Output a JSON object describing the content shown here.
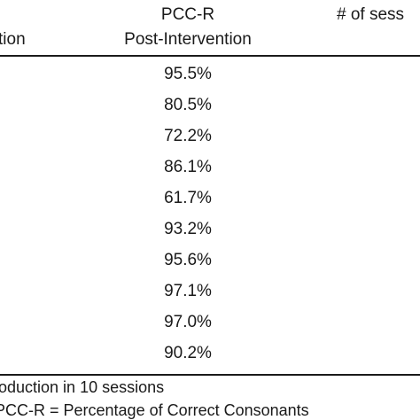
{
  "header": {
    "partial_left": "tion",
    "pcc_title": "PCC-R",
    "pcc_subtitle": "Post-Intervention",
    "sessions_partial": "# of sess"
  },
  "rows": [
    "95.5%",
    "80.5%",
    "72.2%",
    "86.1%",
    "61.7%",
    "93.2%",
    "95.6%",
    "97.1%",
    "97.0%",
    "90.2%"
  ],
  "footnotes": {
    "line1": "oduction in 10 sessions",
    "line2": "PCC-R = Percentage of Correct Consonants"
  }
}
